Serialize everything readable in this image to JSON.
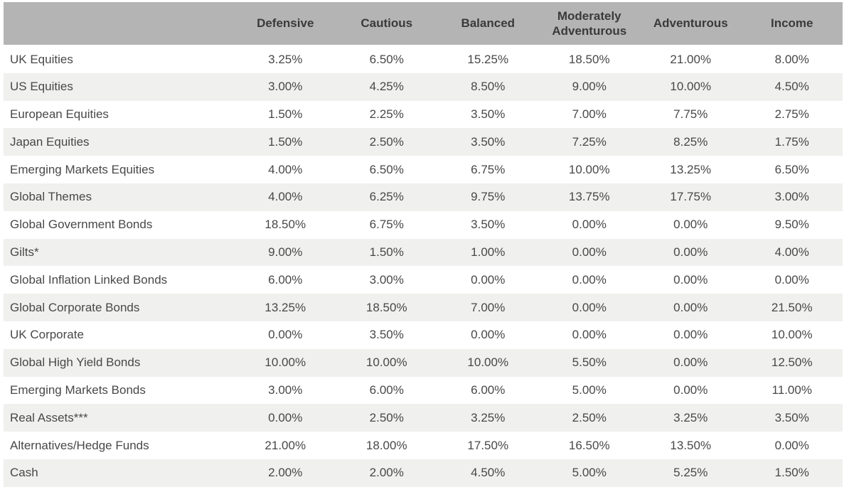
{
  "chart_data": {
    "type": "table",
    "columns": [
      "Defensive",
      "Cautious",
      "Balanced",
      "Moderately Adventurous",
      "Adventurous",
      "Income"
    ],
    "rows": [
      {
        "label": "UK Equities",
        "values": [
          "3.25%",
          "6.50%",
          "15.25%",
          "18.50%",
          "21.00%",
          "8.00%"
        ]
      },
      {
        "label": "US Equities",
        "values": [
          "3.00%",
          "4.25%",
          "8.50%",
          "9.00%",
          "10.00%",
          "4.50%"
        ]
      },
      {
        "label": "European Equities",
        "values": [
          "1.50%",
          "2.25%",
          "3.50%",
          "7.00%",
          "7.75%",
          "2.75%"
        ]
      },
      {
        "label": "Japan Equities",
        "values": [
          "1.50%",
          "2.50%",
          "3.50%",
          "7.25%",
          "8.25%",
          "1.75%"
        ]
      },
      {
        "label": "Emerging Markets Equities",
        "values": [
          "4.00%",
          "6.50%",
          "6.75%",
          "10.00%",
          "13.25%",
          "6.50%"
        ]
      },
      {
        "label": "Global Themes",
        "values": [
          "4.00%",
          "6.25%",
          "9.75%",
          "13.75%",
          "17.75%",
          "3.00%"
        ]
      },
      {
        "label": "Global Government Bonds",
        "values": [
          "18.50%",
          "6.75%",
          "3.50%",
          "0.00%",
          "0.00%",
          "9.50%"
        ]
      },
      {
        "label": "Gilts*",
        "values": [
          "9.00%",
          "1.50%",
          "1.00%",
          "0.00%",
          "0.00%",
          "4.00%"
        ]
      },
      {
        "label": "Global Inflation Linked Bonds",
        "values": [
          "6.00%",
          "3.00%",
          "0.00%",
          "0.00%",
          "0.00%",
          "0.00%"
        ]
      },
      {
        "label": "Global Corporate Bonds",
        "values": [
          "13.25%",
          "18.50%",
          "7.00%",
          "0.00%",
          "0.00%",
          "21.50%"
        ]
      },
      {
        "label": "UK Corporate",
        "values": [
          "0.00%",
          "3.50%",
          "0.00%",
          "0.00%",
          "0.00%",
          "10.00%"
        ]
      },
      {
        "label": "Global High Yield Bonds",
        "values": [
          "10.00%",
          "10.00%",
          "10.00%",
          "5.50%",
          "0.00%",
          "12.50%"
        ]
      },
      {
        "label": "Emerging Markets Bonds",
        "values": [
          "3.00%",
          "6.00%",
          "6.00%",
          "5.00%",
          "0.00%",
          "11.00%"
        ]
      },
      {
        "label": "Real Assets***",
        "values": [
          "0.00%",
          "2.50%",
          "3.25%",
          "2.50%",
          "3.25%",
          "3.50%"
        ]
      },
      {
        "label": "Alternatives/Hedge Funds",
        "values": [
          "21.00%",
          "18.00%",
          "17.50%",
          "16.50%",
          "13.50%",
          "0.00%"
        ]
      },
      {
        "label": "Cash",
        "values": [
          "2.00%",
          "2.00%",
          "4.50%",
          "5.00%",
          "5.25%",
          "1.50%"
        ]
      }
    ]
  },
  "colors": {
    "header_bg": "#b4b4b4",
    "header_text": "#3a3a3a",
    "row_bg": "#ffffff",
    "row_alt_bg": "#f0f0ef",
    "body_text": "#484848"
  }
}
